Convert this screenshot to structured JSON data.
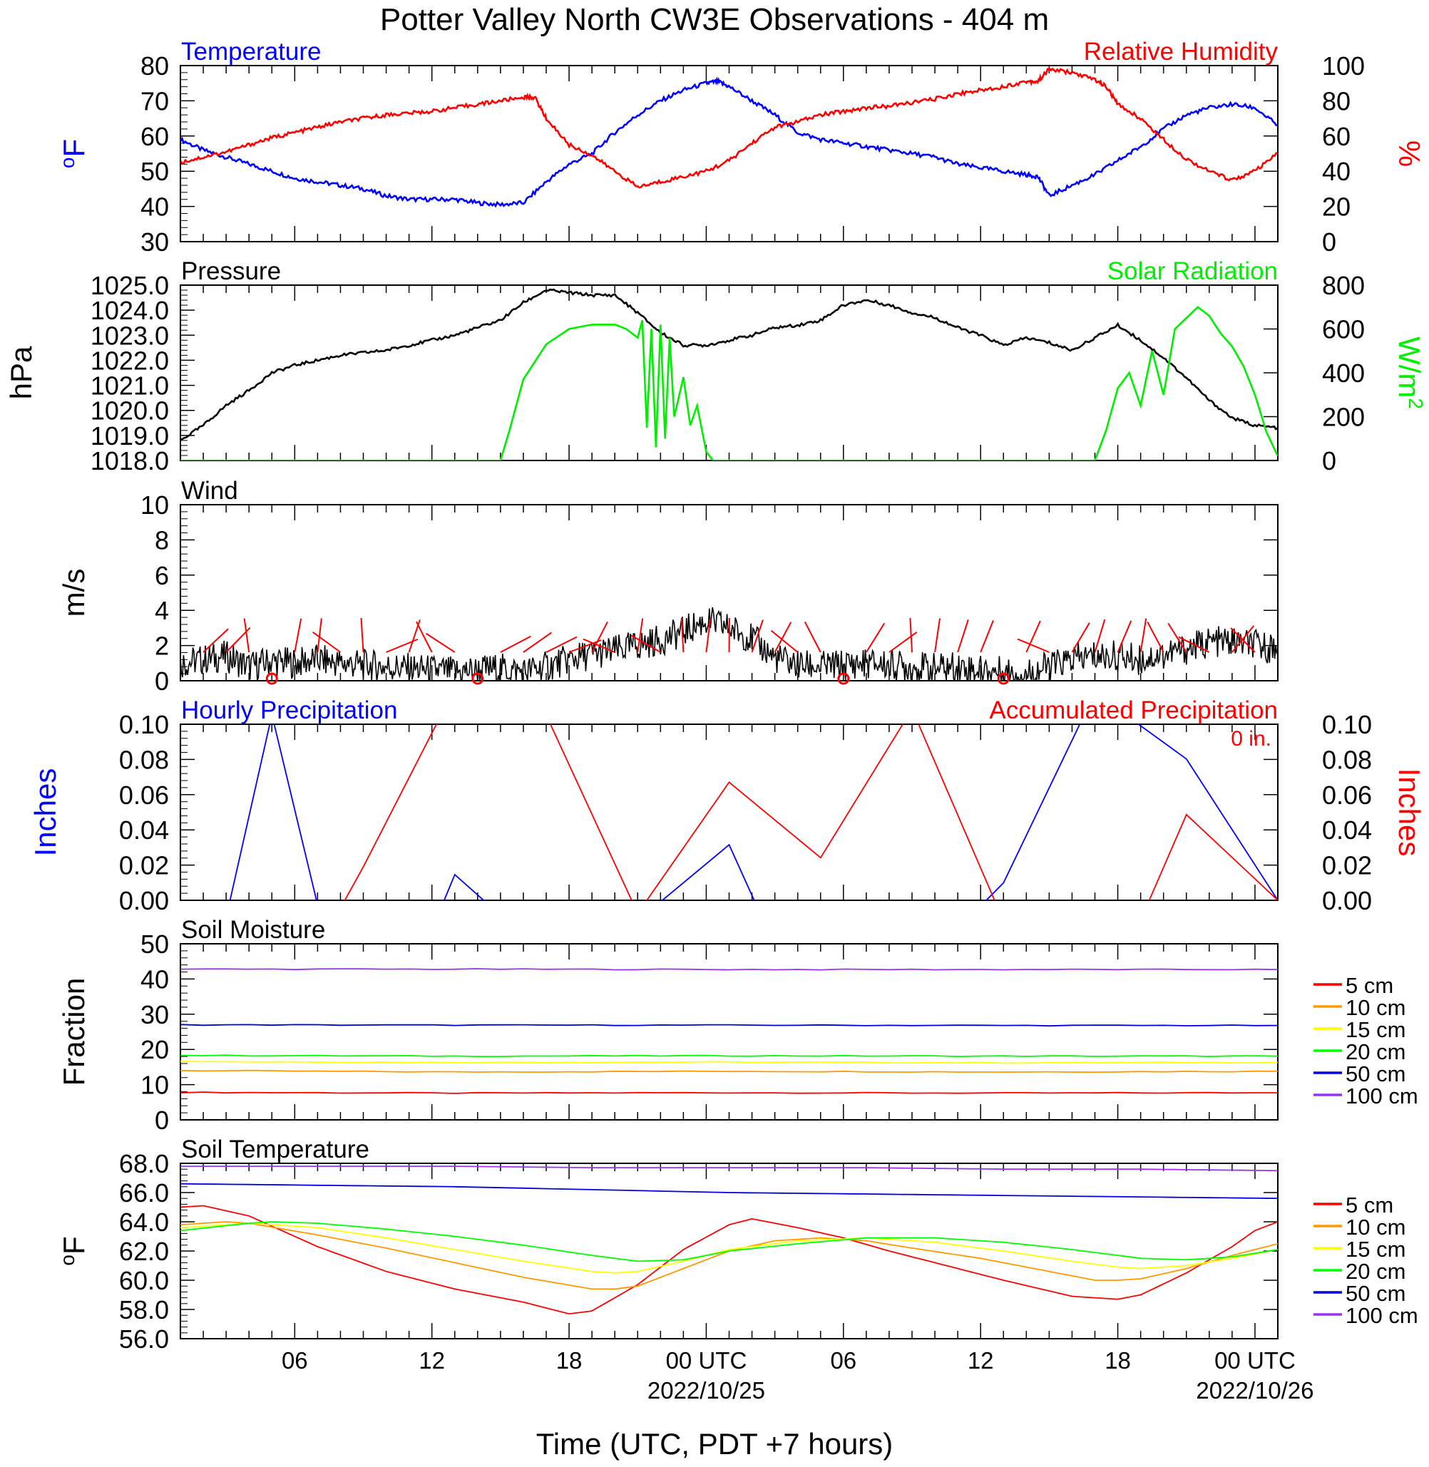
{
  "title": "Potter Valley North CW3E Observations - 404 m",
  "xlabel": "Time (UTC, PDT +7 hours)",
  "colors": {
    "temperature": "#0000ff",
    "humidity": "#ff0000",
    "pressure": "#000000",
    "solar": "#00ee00",
    "wind": "#000000",
    "barb": "#ff0000",
    "d5": "#ff0000",
    "d10": "#ff9900",
    "d15": "#ffff00",
    "d20": "#00ff00",
    "d50": "#0000dd",
    "d100": "#9933ee"
  },
  "chart_data": [
    {
      "type": "line",
      "panel": "temperature-humidity",
      "left_title": "Temperature",
      "right_title": "Relative Humidity",
      "ylabel": "oF",
      "ylabel_right": "%",
      "ylim": [
        30,
        80
      ],
      "ylim_right": [
        0,
        100
      ],
      "yticks": [
        "30",
        "40",
        "50",
        "60",
        "70",
        "80"
      ],
      "yticks_right": [
        "0",
        "20",
        "40",
        "60",
        "80",
        "100"
      ],
      "series": [
        {
          "name": "Temperature",
          "axis": "left",
          "x": [
            0,
            1,
            2,
            3,
            4,
            5,
            6,
            7,
            8,
            9,
            10,
            11,
            12,
            13,
            14,
            15,
            16,
            17,
            18,
            19,
            20,
            21,
            22,
            23,
            23.5,
            24,
            25,
            26,
            27,
            28,
            29,
            30,
            31,
            32,
            33,
            34,
            35,
            36,
            37,
            37.5,
            38,
            39,
            40,
            41,
            42,
            43,
            44,
            45,
            46,
            47,
            48
          ],
          "y": [
            59,
            56,
            54,
            52,
            50,
            48,
            47,
            46,
            45,
            43,
            42,
            42,
            42,
            41,
            40.5,
            41,
            47,
            52,
            55,
            61,
            66,
            70,
            73,
            75,
            75.5,
            74,
            70,
            66,
            61,
            59,
            58,
            57,
            56,
            55,
            54,
            52,
            51,
            50,
            49,
            48.5,
            43,
            46,
            49,
            53,
            57,
            62,
            66,
            68,
            69,
            68,
            63
          ]
        },
        {
          "name": "Relative Humidity",
          "axis": "right",
          "x": [
            0,
            1,
            2,
            3,
            4,
            5,
            6,
            7,
            8,
            9,
            10,
            11,
            12,
            13,
            14,
            15,
            15.5,
            16,
            17,
            18,
            19,
            20,
            21,
            22,
            23,
            24,
            25,
            26,
            27,
            28,
            29,
            30,
            31,
            32,
            33,
            34,
            35,
            36,
            37,
            37.5,
            38,
            39,
            40,
            40.5,
            41,
            42,
            43,
            44,
            45,
            46,
            47,
            48
          ],
          "y": [
            45,
            48,
            51,
            55,
            59,
            62,
            65,
            68,
            70,
            72,
            73,
            74,
            76,
            78,
            80,
            82,
            82,
            70,
            55,
            49,
            40,
            31,
            34,
            37,
            40,
            46,
            56,
            65,
            68,
            72,
            74,
            76,
            77,
            79,
            81,
            84,
            86,
            88,
            91,
            91,
            98,
            96,
            92,
            88,
            78,
            70,
            58,
            47,
            40,
            35,
            40,
            50
          ]
        }
      ]
    },
    {
      "type": "line",
      "panel": "pressure-solar",
      "left_title": "Pressure",
      "right_title": "Solar Radiation",
      "ylabel": "hPa",
      "ylabel_right": "W/m2",
      "ylim": [
        1018.0,
        1025.0
      ],
      "ylim_right": [
        0,
        800
      ],
      "yticks": [
        "1018.0",
        "1019.0",
        "1020.0",
        "1021.0",
        "1022.0",
        "1023.0",
        "1024.0",
        "1025.0"
      ],
      "yticks_right": [
        "0",
        "200",
        "400",
        "600",
        "800"
      ],
      "series": [
        {
          "name": "Pressure",
          "axis": "left",
          "x": [
            0,
            1,
            2,
            3,
            4,
            5,
            6,
            7,
            8,
            9,
            10,
            11,
            12,
            13,
            14,
            15,
            16,
            17,
            18,
            19,
            20,
            21,
            22,
            23,
            24,
            25,
            26,
            27,
            28,
            29,
            30,
            31,
            32,
            33,
            34,
            35,
            36,
            37,
            38,
            39,
            40,
            41,
            42,
            43,
            44,
            45,
            46,
            47,
            48
          ],
          "y": [
            1018.8,
            1019.4,
            1020.2,
            1020.8,
            1021.5,
            1021.8,
            1022.0,
            1022.2,
            1022.3,
            1022.4,
            1022.6,
            1022.8,
            1023.0,
            1023.3,
            1023.6,
            1024.3,
            1024.8,
            1024.7,
            1024.6,
            1024.6,
            1023.9,
            1023.1,
            1022.6,
            1022.6,
            1022.8,
            1023.0,
            1023.3,
            1023.4,
            1023.6,
            1024.2,
            1024.4,
            1024.2,
            1023.9,
            1023.7,
            1023.3,
            1023.0,
            1022.6,
            1022.9,
            1022.7,
            1022.4,
            1022.9,
            1023.4,
            1022.8,
            1022.1,
            1021.3,
            1020.4,
            1019.7,
            1019.4,
            1019.3
          ]
        },
        {
          "name": "Solar Radiation",
          "axis": "right",
          "x": [
            0,
            14,
            14.4,
            15,
            16,
            17,
            18,
            19,
            19.5,
            20,
            20.2,
            20.4,
            20.6,
            20.8,
            21.0,
            21.2,
            21.4,
            21.6,
            22,
            22.3,
            22.6,
            23.0,
            23.3,
            23.6,
            24,
            40,
            40.5,
            41,
            41.5,
            42,
            42.5,
            43,
            43.5,
            44,
            44.5,
            45,
            45.5,
            46,
            46.5,
            47,
            47.5,
            48
          ],
          "y": [
            0,
            0,
            140,
            370,
            530,
            600,
            620,
            620,
            600,
            560,
            640,
            150,
            600,
            60,
            620,
            100,
            560,
            200,
            380,
            160,
            250,
            40,
            0,
            0,
            0,
            0,
            140,
            330,
            400,
            250,
            500,
            300,
            600,
            650,
            700,
            660,
            580,
            520,
            430,
            300,
            130,
            20
          ]
        }
      ]
    },
    {
      "type": "line",
      "panel": "wind",
      "left_title": "Wind",
      "ylabel": "m/s",
      "ylim": [
        0,
        10
      ],
      "yticks": [
        "0",
        "2",
        "4",
        "6",
        "8",
        "10"
      ],
      "series": [
        {
          "name": "Wind speed",
          "x": [
            0,
            1,
            2,
            3,
            4,
            5,
            6,
            7,
            8,
            9,
            10,
            11,
            12,
            13,
            14,
            15,
            16,
            17,
            18,
            19,
            20,
            21,
            22,
            23,
            24,
            25,
            26,
            27,
            28,
            29,
            30,
            31,
            32,
            33,
            34,
            35,
            36,
            37,
            38,
            39,
            40,
            41,
            42,
            43,
            44,
            45,
            46,
            47,
            48
          ],
          "y": [
            1.0,
            1.2,
            1.4,
            0.8,
            1.1,
            1.0,
            1.2,
            1.0,
            0.9,
            0.8,
            0.7,
            0.6,
            0.5,
            0.6,
            0.7,
            0.5,
            0.8,
            1.2,
            1.5,
            1.7,
            2.0,
            2.3,
            2.8,
            3.4,
            3.0,
            2.4,
            1.3,
            0.9,
            0.8,
            0.9,
            1.0,
            0.9,
            0.8,
            0.7,
            0.8,
            0.6,
            0.5,
            0.4,
            0.8,
            1.2,
            1.4,
            1.4,
            1.2,
            1.5,
            1.8,
            2.2,
            2.2,
            2.0,
            1.8
          ]
        }
      ],
      "barbs": {
        "calm_hours": [
          4,
          13,
          29,
          36
        ]
      }
    },
    {
      "type": "line",
      "panel": "precipitation",
      "left_title": "Hourly Precipitation",
      "right_title": "Accumulated Precipitation",
      "total": "0 in.",
      "ylabel": "Inches",
      "ylabel_right": "Inches",
      "ylim": [
        0,
        0.1
      ],
      "ylim_right": [
        0,
        0.1
      ],
      "yticks": [
        "0.00",
        "0.02",
        "0.04",
        "0.06",
        "0.08",
        "0.10"
      ],
      "yticks_right": [
        "0.00",
        "0.02",
        "0.04",
        "0.06",
        "0.08",
        "0.10"
      ],
      "series": [
        {
          "name": "Hourly Precipitation",
          "axis": "left",
          "x": [
            0,
            48
          ],
          "y": [
            0,
            0
          ]
        },
        {
          "name": "Accumulated Precipitation",
          "axis": "right",
          "x": [
            0,
            48
          ],
          "y": [
            0,
            0
          ]
        }
      ]
    },
    {
      "type": "line",
      "panel": "soil-moisture",
      "left_title": "Soil Moisture",
      "ylabel": "Fraction",
      "ylim": [
        0,
        50
      ],
      "yticks": [
        "0",
        "10",
        "20",
        "30",
        "40",
        "50"
      ],
      "series": [
        {
          "name": "5 cm",
          "x": [
            0,
            12,
            24,
            36,
            48
          ],
          "y": [
            7.8,
            7.6,
            7.7,
            7.6,
            7.7
          ]
        },
        {
          "name": "10 cm",
          "x": [
            0,
            12,
            24,
            36,
            48
          ],
          "y": [
            14.0,
            13.6,
            13.8,
            13.6,
            13.8
          ]
        },
        {
          "name": "15 cm",
          "x": [
            0,
            12,
            24,
            36,
            48
          ],
          "y": [
            16.6,
            16.3,
            16.4,
            16.2,
            16.3
          ]
        },
        {
          "name": "20 cm",
          "x": [
            0,
            12,
            24,
            36,
            48
          ],
          "y": [
            18.3,
            18.1,
            18.2,
            18.1,
            18.1
          ]
        },
        {
          "name": "50 cm",
          "x": [
            0,
            12,
            24,
            36,
            48
          ],
          "y": [
            27.0,
            26.9,
            26.9,
            26.8,
            26.8
          ]
        },
        {
          "name": "100 cm",
          "x": [
            0,
            12,
            24,
            36,
            48
          ],
          "y": [
            42.8,
            42.8,
            42.7,
            42.7,
            42.7
          ]
        }
      ],
      "legend": [
        "5 cm",
        "10 cm",
        "15 cm",
        "20 cm",
        "50 cm",
        "100 cm"
      ]
    },
    {
      "type": "line",
      "panel": "soil-temperature",
      "left_title": "Soil Temperature",
      "ylabel": "oF",
      "ylim": [
        56.0,
        68.0
      ],
      "yticks": [
        "56.0",
        "58.0",
        "60.0",
        "62.0",
        "64.0",
        "66.0",
        "68.0"
      ],
      "series": [
        {
          "name": "5 cm",
          "x": [
            0,
            1,
            3,
            6,
            9,
            12,
            15,
            17,
            18,
            20,
            22,
            24,
            25,
            27,
            29,
            31,
            33,
            36,
            39,
            41,
            42,
            44,
            46,
            47,
            48
          ],
          "y": [
            65.0,
            65.1,
            64.4,
            62.3,
            60.6,
            59.4,
            58.5,
            57.7,
            57.9,
            59.7,
            62.1,
            63.8,
            64.2,
            63.6,
            62.9,
            62.0,
            61.2,
            60.0,
            58.9,
            58.7,
            59.0,
            60.5,
            62.3,
            63.4,
            64.0
          ]
        },
        {
          "name": "10 cm",
          "x": [
            0,
            2,
            3,
            6,
            9,
            12,
            15,
            18,
            19,
            20,
            22,
            24,
            26,
            28,
            30,
            32,
            35,
            38,
            40,
            41,
            42,
            44,
            46,
            48
          ],
          "y": [
            63.8,
            64.0,
            63.9,
            63.1,
            62.2,
            61.2,
            60.2,
            59.4,
            59.4,
            59.6,
            60.8,
            62.0,
            62.7,
            62.9,
            62.7,
            62.2,
            61.5,
            60.6,
            60.0,
            60.0,
            60.1,
            60.8,
            61.7,
            62.5
          ]
        },
        {
          "name": "15 cm",
          "x": [
            0,
            3,
            6,
            9,
            12,
            15,
            18,
            19,
            20,
            22,
            24,
            27,
            30,
            33,
            36,
            39,
            41,
            42,
            44,
            46,
            48
          ],
          "y": [
            63.6,
            63.9,
            63.6,
            62.9,
            62.1,
            61.3,
            60.6,
            60.5,
            60.6,
            61.3,
            62.1,
            62.7,
            62.9,
            62.6,
            62.0,
            61.3,
            60.9,
            60.8,
            61.0,
            61.5,
            62.1
          ]
        },
        {
          "name": "20 cm",
          "x": [
            0,
            3,
            4,
            6,
            9,
            12,
            15,
            18,
            20,
            22,
            24,
            27,
            30,
            33,
            36,
            39,
            42,
            44,
            46,
            48
          ],
          "y": [
            63.4,
            63.9,
            64.0,
            63.9,
            63.5,
            63.0,
            62.4,
            61.7,
            61.3,
            61.4,
            62.0,
            62.5,
            62.9,
            62.9,
            62.6,
            62.1,
            61.5,
            61.4,
            61.6,
            62.1
          ]
        },
        {
          "name": "50 cm",
          "x": [
            0,
            6,
            12,
            18,
            24,
            30,
            36,
            42,
            48
          ],
          "y": [
            66.6,
            66.5,
            66.4,
            66.2,
            66.0,
            65.9,
            65.8,
            65.7,
            65.6
          ]
        },
        {
          "name": "100 cm",
          "x": [
            0,
            6,
            12,
            18,
            24,
            30,
            36,
            42,
            48
          ],
          "y": [
            67.8,
            67.8,
            67.8,
            67.7,
            67.7,
            67.7,
            67.6,
            67.6,
            67.5
          ]
        }
      ],
      "legend": [
        "5 cm",
        "10 cm",
        "15 cm",
        "20 cm",
        "50 cm",
        "100 cm"
      ]
    }
  ],
  "xaxis": {
    "range_hours": [
      0,
      48
    ],
    "tick_labels": [
      {
        "hour": 5,
        "label": "06"
      },
      {
        "hour": 11,
        "label": "12"
      },
      {
        "hour": 17,
        "label": "18"
      },
      {
        "hour": 23,
        "label": "00 UTC",
        "date": "2022/10/25"
      },
      {
        "hour": 29,
        "label": "06"
      },
      {
        "hour": 35,
        "label": "12"
      },
      {
        "hour": 41,
        "label": "18"
      },
      {
        "hour": 47,
        "label": "00 UTC",
        "date": "2022/10/26"
      }
    ]
  }
}
